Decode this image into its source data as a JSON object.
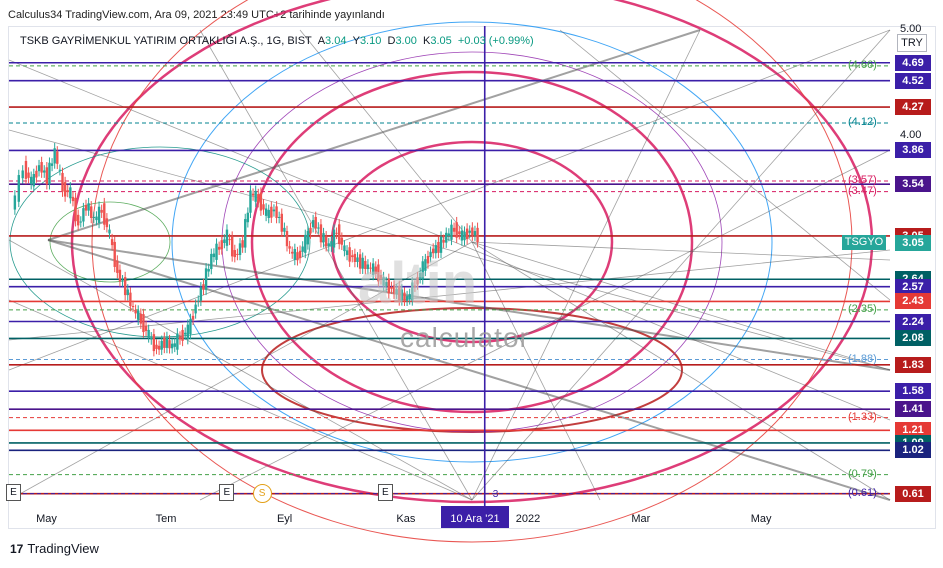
{
  "header": {
    "published": "Calculus34 TradingView.com, Ara 09, 2021 23:49 UTC+2 tarihinde yayınlandı"
  },
  "legend": {
    "symbol": "TSKB GAYRİMENKUL YATIRIM ORTAKLIĞI A.Ş., 1G, BIST",
    "a_label": "A",
    "a_value": "3.04",
    "y_label": "Y",
    "y_value": "3.10",
    "d_label": "D",
    "d_value": "3.00",
    "k_label": "K",
    "k_value": "3.05",
    "change": "+0.03 (+0.99%)"
  },
  "currency": "TRY",
  "symbol_tag": {
    "label": "TSGYO",
    "value": "3.05"
  },
  "watermark": {
    "big": "altin",
    "text": "calculator"
  },
  "branding": {
    "logo": "17",
    "name": "TradingView"
  },
  "cursor": {
    "date_label": "10 Ara '21"
  },
  "colors": {
    "up": "#26a69a",
    "down": "#ef5350",
    "purple": "#3b1fa8",
    "darkred": "#b71c1c",
    "teal_dark": "#006064",
    "magenta": "#d81b60",
    "darkgreen": "#1b5e20"
  },
  "chart_data": {
    "type": "candlestick",
    "y_axis": {
      "min": 0.55,
      "max": 5.0,
      "ticks": [
        "5.00",
        "4.00",
        "3.00"
      ]
    },
    "x_labels": [
      {
        "label": "May",
        "day": 0
      },
      {
        "label": "Tem",
        "day": 61
      },
      {
        "label": "Eyl",
        "day": 123
      },
      {
        "label": "Kas",
        "day": 184
      },
      {
        "label": "2022",
        "day": 245
      },
      {
        "label": "Mar",
        "day": 304
      },
      {
        "label": "May",
        "day": 365
      }
    ],
    "x_range": {
      "start_day": -20,
      "end_day": 430
    },
    "cursor_day": 223,
    "price_path": [
      [
        -18,
        3.3
      ],
      [
        -12,
        3.7
      ],
      [
        -8,
        3.55
      ],
      [
        -4,
        3.72
      ],
      [
        0,
        3.6
      ],
      [
        4,
        3.85
      ],
      [
        8,
        3.5
      ],
      [
        12,
        3.45
      ],
      [
        16,
        3.15
      ],
      [
        20,
        3.35
      ],
      [
        24,
        3.2
      ],
      [
        28,
        3.3
      ],
      [
        32,
        3.05
      ],
      [
        36,
        2.7
      ],
      [
        40,
        2.55
      ],
      [
        44,
        2.35
      ],
      [
        48,
        2.25
      ],
      [
        52,
        2.1
      ],
      [
        56,
        1.98
      ],
      [
        60,
        2.05
      ],
      [
        64,
        2.0
      ],
      [
        68,
        2.1
      ],
      [
        72,
        2.15
      ],
      [
        76,
        2.4
      ],
      [
        80,
        2.6
      ],
      [
        84,
        2.85
      ],
      [
        88,
        2.95
      ],
      [
        92,
        3.05
      ],
      [
        96,
        2.85
      ],
      [
        100,
        3.0
      ],
      [
        104,
        3.45
      ],
      [
        108,
        3.4
      ],
      [
        112,
        3.25
      ],
      [
        116,
        3.3
      ],
      [
        120,
        3.15
      ],
      [
        124,
        2.9
      ],
      [
        128,
        2.85
      ],
      [
        132,
        3.0
      ],
      [
        136,
        3.2
      ],
      [
        140,
        3.05
      ],
      [
        144,
        2.95
      ],
      [
        148,
        3.1
      ],
      [
        152,
        2.9
      ],
      [
        156,
        2.85
      ],
      [
        160,
        2.8
      ],
      [
        164,
        2.75
      ],
      [
        168,
        2.72
      ],
      [
        172,
        2.6
      ],
      [
        176,
        2.55
      ],
      [
        180,
        2.5
      ],
      [
        184,
        2.45
      ],
      [
        188,
        2.6
      ],
      [
        192,
        2.75
      ],
      [
        196,
        2.9
      ],
      [
        200,
        2.95
      ],
      [
        204,
        3.05
      ],
      [
        208,
        3.12
      ],
      [
        212,
        3.04
      ],
      [
        216,
        3.1
      ],
      [
        220,
        3.05
      ]
    ],
    "horizontal_levels": [
      {
        "value": 4.69,
        "label": "4.69",
        "color": "#3b1fa8",
        "tag": true
      },
      {
        "value": 4.52,
        "label": "4.52",
        "color": "#3b1fa8",
        "tag": true
      },
      {
        "value": 4.27,
        "label": "4.27",
        "color": "#b71c1c",
        "tag": true
      },
      {
        "value": 3.86,
        "label": "3.86",
        "color": "#3b1fa8",
        "tag": true
      },
      {
        "value": 3.54,
        "label": "3.54",
        "color": "#4a148c",
        "tag": true
      },
      {
        "value": 3.05,
        "label": "3.05",
        "color": "#b71c1c",
        "tag": true
      },
      {
        "value": 2.64,
        "label": "2.64",
        "color": "#006064",
        "tag": true
      },
      {
        "value": 2.57,
        "label": "2.57",
        "color": "#3b1fa8",
        "tag": true
      },
      {
        "value": 2.43,
        "label": "2.43",
        "color": "#e53935",
        "tag": true
      },
      {
        "value": 2.24,
        "label": "2.24",
        "color": "#3b1fa8",
        "tag": true
      },
      {
        "value": 2.08,
        "label": "2.08",
        "color": "#006064",
        "tag": true
      },
      {
        "value": 1.83,
        "label": "1.83",
        "color": "#b71c1c",
        "tag": true
      },
      {
        "value": 1.58,
        "label": "1.58",
        "color": "#3b1fa8",
        "tag": true
      },
      {
        "value": 1.41,
        "label": "1.41",
        "color": "#4a148c",
        "tag": true
      },
      {
        "value": 1.21,
        "label": "1.21",
        "color": "#e53935",
        "tag": true
      },
      {
        "value": 1.09,
        "label": "1.09",
        "color": "#006064",
        "tag": true
      },
      {
        "value": 1.02,
        "label": "1.02",
        "color": "#1a237e",
        "tag": true
      },
      {
        "value": 0.61,
        "label": "0.61",
        "color": "#b71c1c",
        "tag": true
      }
    ],
    "fib_levels": [
      {
        "value": 4.66,
        "label": "(4.66)",
        "color": "#43a047"
      },
      {
        "value": 4.12,
        "label": "(4.12)",
        "color": "#00838f"
      },
      {
        "value": 3.57,
        "label": "(3.57)",
        "color": "#d81b60"
      },
      {
        "value": 3.47,
        "label": "(3.47)",
        "color": "#d81b60"
      },
      {
        "value": 2.35,
        "label": "(2.35)",
        "color": "#43a047"
      },
      {
        "value": 1.88,
        "label": "(1.88)",
        "color": "#5c9bd5"
      },
      {
        "value": 1.33,
        "label": "(1.33)",
        "color": "#e53935"
      },
      {
        "value": 0.79,
        "label": "(0.79)",
        "color": "#43a047"
      },
      {
        "value": 0.61,
        "label": "(0.61)",
        "color": "#3b1fa8"
      }
    ],
    "events": [
      {
        "day": -18,
        "kind": "E"
      },
      {
        "day": 91,
        "kind": "E"
      },
      {
        "day": 108,
        "kind": "S"
      },
      {
        "day": 172,
        "kind": "E"
      }
    ],
    "cursor_value_label": "3"
  }
}
